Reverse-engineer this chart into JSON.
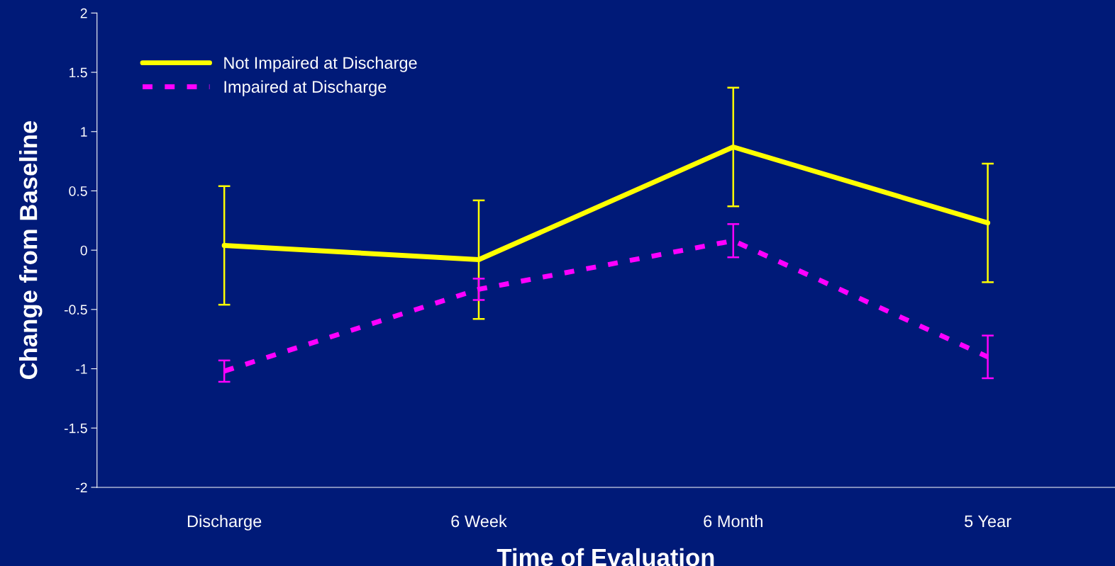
{
  "chart_data": {
    "type": "line",
    "xlabel": "Time of Evaluation",
    "ylabel": "Change from Baseline",
    "categories": [
      "Discharge",
      "6 Week",
      "6 Month",
      "5 Year"
    ],
    "series": [
      {
        "name": "Not Impaired at Discharge",
        "color": "#ffff00",
        "line_style": "solid",
        "values": [
          0.04,
          -0.08,
          0.87,
          0.23
        ],
        "errors": [
          0.5,
          0.5,
          0.5,
          0.5
        ]
      },
      {
        "name": "Impaired at Discharge",
        "color": "#ff00ff",
        "line_style": "dashed",
        "values": [
          -1.02,
          -0.33,
          0.08,
          -0.9
        ],
        "errors": [
          0.09,
          0.09,
          0.14,
          0.18
        ]
      }
    ],
    "ylim": [
      -2,
      2
    ],
    "yticks": [
      -2,
      -1.5,
      -1,
      -0.5,
      0,
      0.5,
      1,
      1.5,
      2
    ],
    "grid": false,
    "legend": "top left",
    "marker": "none"
  }
}
